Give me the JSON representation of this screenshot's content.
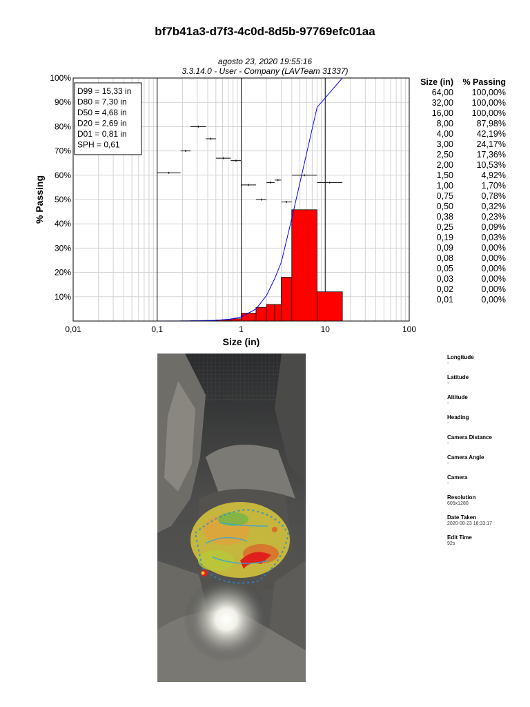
{
  "report": {
    "id": "bf7b41a3-d7f3-4c0d-8d5b-97769efc01aa",
    "date_line": "agosto 23, 2020 19:55:16",
    "version_line": "3.3.14.0  -  User - Company (LAVTeam 31337)"
  },
  "stats": [
    "D99 = 15,33 in",
    "D80 = 7,30 in",
    "D50 = 4,68 in",
    "D20 = 2,69 in",
    "D01 = 0,81 in",
    "SPH = 0,61"
  ],
  "table": {
    "col_size": "Size (in)",
    "col_passing": "% Passing",
    "rows": [
      {
        "size": "64,00",
        "passing": "100,00%"
      },
      {
        "size": "32,00",
        "passing": "100,00%"
      },
      {
        "size": "16,00",
        "passing": "100,00%"
      },
      {
        "size": "8,00",
        "passing": "87,98%"
      },
      {
        "size": "4,00",
        "passing": "42,19%"
      },
      {
        "size": "3,00",
        "passing": "24,17%"
      },
      {
        "size": "2,50",
        "passing": "17,36%"
      },
      {
        "size": "2,00",
        "passing": "10,53%"
      },
      {
        "size": "1,50",
        "passing": "4,92%"
      },
      {
        "size": "1,00",
        "passing": "1,70%"
      },
      {
        "size": "0,75",
        "passing": "0,78%"
      },
      {
        "size": "0,50",
        "passing": "0,32%"
      },
      {
        "size": "0,38",
        "passing": "0,23%"
      },
      {
        "size": "0,25",
        "passing": "0,09%"
      },
      {
        "size": "0,19",
        "passing": "0,03%"
      },
      {
        "size": "0,09",
        "passing": "0,00%"
      },
      {
        "size": "0,08",
        "passing": "0,00%"
      },
      {
        "size": "0,05",
        "passing": "0,00%"
      },
      {
        "size": "0,03",
        "passing": "0,00%"
      },
      {
        "size": "0,02",
        "passing": "0,00%"
      },
      {
        "size": "0,01",
        "passing": "0,00%"
      }
    ]
  },
  "metadata": [
    {
      "label": "Longitude",
      "value": "-"
    },
    {
      "label": "Latitude",
      "value": "-"
    },
    {
      "label": "Altitude",
      "value": "-"
    },
    {
      "label": "Heading",
      "value": "-"
    },
    {
      "label": "Camera Distance",
      "value": "-"
    },
    {
      "label": "Camera Angle",
      "value": "-"
    },
    {
      "label": "Camera",
      "value": "-"
    },
    {
      "label": "Resolution",
      "value": "605x1280"
    },
    {
      "label": "Date Taken",
      "value": "2020-08-23 18:33:17"
    },
    {
      "label": "Edit Time",
      "value": "92s"
    }
  ],
  "chart_data": {
    "type": "bar",
    "title": "",
    "xlabel": "Size (in)",
    "ylabel": "% Passing",
    "x_scale": "log",
    "xlim": [
      0.01,
      100
    ],
    "ylim": [
      0,
      100
    ],
    "x_ticks": [
      {
        "value": 0.01,
        "label": "0,01"
      },
      {
        "value": 0.1,
        "label": "0,1"
      },
      {
        "value": 1,
        "label": "1"
      },
      {
        "value": 10,
        "label": "10"
      },
      {
        "value": 100,
        "label": "100"
      }
    ],
    "y_ticks": [
      {
        "value": 10,
        "label": "10%"
      },
      {
        "value": 20,
        "label": "20%"
      },
      {
        "value": 30,
        "label": "30%"
      },
      {
        "value": 40,
        "label": "40%"
      },
      {
        "value": 50,
        "label": "50%"
      },
      {
        "value": 60,
        "label": "60%"
      },
      {
        "value": 70,
        "label": "70%"
      },
      {
        "value": 80,
        "label": "80%"
      },
      {
        "value": 90,
        "label": "90%"
      },
      {
        "value": 100,
        "label": "100%"
      }
    ],
    "grid": true,
    "legend": "none",
    "bar_color": "#ff0000",
    "curve_color": "#0000ff",
    "histogram": [
      {
        "from": 0.19,
        "to": 0.25,
        "value": 0.06
      },
      {
        "from": 0.25,
        "to": 0.38,
        "value": 0.14
      },
      {
        "from": 0.38,
        "to": 0.5,
        "value": 0.09
      },
      {
        "from": 0.5,
        "to": 0.75,
        "value": 0.46
      },
      {
        "from": 0.75,
        "to": 1.0,
        "value": 0.92
      },
      {
        "from": 1.0,
        "to": 1.5,
        "value": 3.22
      },
      {
        "from": 1.5,
        "to": 2.0,
        "value": 5.61
      },
      {
        "from": 2.0,
        "to": 2.5,
        "value": 6.83
      },
      {
        "from": 2.5,
        "to": 3.0,
        "value": 6.81
      },
      {
        "from": 3.0,
        "to": 4.0,
        "value": 18.02
      },
      {
        "from": 4.0,
        "to": 8.0,
        "value": 45.79
      },
      {
        "from": 8.0,
        "to": 16.0,
        "value": 12.02
      }
    ],
    "cumulative": [
      {
        "x": 0.01,
        "y": 0
      },
      {
        "x": 0.09,
        "y": 0
      },
      {
        "x": 0.19,
        "y": 0.03
      },
      {
        "x": 0.25,
        "y": 0.09
      },
      {
        "x": 0.38,
        "y": 0.23
      },
      {
        "x": 0.5,
        "y": 0.32
      },
      {
        "x": 0.75,
        "y": 0.78
      },
      {
        "x": 1.0,
        "y": 1.7
      },
      {
        "x": 1.5,
        "y": 4.92
      },
      {
        "x": 2.0,
        "y": 10.53
      },
      {
        "x": 2.5,
        "y": 17.36
      },
      {
        "x": 3.0,
        "y": 24.17
      },
      {
        "x": 4.0,
        "y": 42.19
      },
      {
        "x": 8.0,
        "y": 87.98
      },
      {
        "x": 16.0,
        "y": 100
      },
      {
        "x": 32.0,
        "y": 100
      },
      {
        "x": 64.0,
        "y": 100
      }
    ],
    "shape_markers": [
      {
        "from": 0.1,
        "to": 0.19,
        "value": 61
      },
      {
        "from": 0.19,
        "to": 0.25,
        "value": 70
      },
      {
        "from": 0.25,
        "to": 0.38,
        "value": 80
      },
      {
        "from": 0.38,
        "to": 0.5,
        "value": 75
      },
      {
        "from": 0.5,
        "to": 0.75,
        "value": 67
      },
      {
        "from": 0.75,
        "to": 1.0,
        "value": 66
      },
      {
        "from": 1.0,
        "to": 1.5,
        "value": 56
      },
      {
        "from": 1.5,
        "to": 2.0,
        "value": 50
      },
      {
        "from": 2.0,
        "to": 2.5,
        "value": 57
      },
      {
        "from": 2.5,
        "to": 3.0,
        "value": 58
      },
      {
        "from": 3.0,
        "to": 4.0,
        "value": 49
      },
      {
        "from": 4.0,
        "to": 8.0,
        "value": 60
      },
      {
        "from": 8.0,
        "to": 16.0,
        "value": 57
      }
    ]
  }
}
